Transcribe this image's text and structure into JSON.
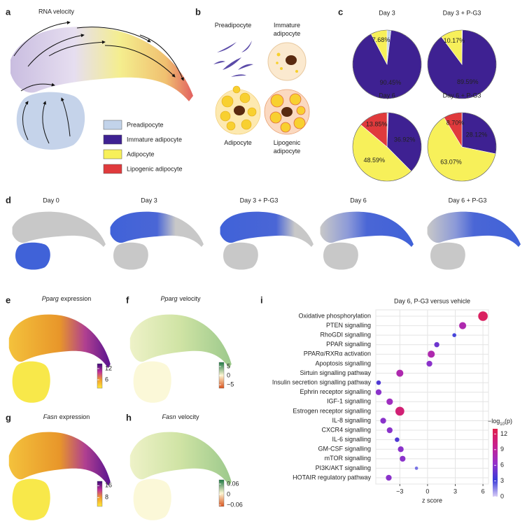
{
  "panel_labels": [
    "a",
    "b",
    "c",
    "d",
    "e",
    "f",
    "g",
    "h",
    "i"
  ],
  "a": {
    "title": "RNA velocity",
    "legend": [
      {
        "name": "Preadipocyte",
        "color": "#c2d3ea"
      },
      {
        "name": "Immature adipocyte",
        "color": "#3e2192"
      },
      {
        "name": "Adipocyte",
        "color": "#f7f05a"
      },
      {
        "name": "Lipogenic adipocyte",
        "color": "#e03a3c"
      }
    ]
  },
  "b": {
    "cells": [
      [
        "Preadipocyte"
      ],
      [
        "Immature",
        "adipocyte"
      ],
      [
        "Adipocyte"
      ],
      [
        "Lipogenic",
        "adipocyte"
      ]
    ]
  },
  "d": {
    "titles": [
      "Day 0",
      "Day 3",
      "Day 3 + P-G3",
      "Day 6",
      "Day 6 + P-G3"
    ]
  },
  "feature_plots": [
    {
      "gene": "Pparg",
      "title": "expression",
      "clim": [
        1.5,
        14.6
      ],
      "ticks": [
        12,
        6
      ],
      "colormap": [
        "#ffe93a",
        "#f3a02a",
        "#c0309a",
        "#3a0a7a"
      ]
    },
    {
      "gene": "Pparg",
      "title": "velocity",
      "clim": [
        -6.9,
        7.3
      ],
      "ticks": [
        5,
        0,
        {
          "value": -5,
          "label": "−5"
        }
      ],
      "colormap": [
        "#d9541e",
        "#fdf6d2",
        "#1f7a45"
      ]
    },
    {
      "gene": "Fasn",
      "title": "expression",
      "clim": [
        2,
        19
      ],
      "ticks": [
        16,
        8
      ],
      "colormap": [
        "#ffe93a",
        "#f3a02a",
        "#c0309a",
        "#3a0a7a"
      ]
    },
    {
      "gene": "Fasn",
      "title": "velocity",
      "clim": [
        -0.068,
        0.084
      ],
      "ticks": [
        0.06,
        0,
        {
          "value": -0.06,
          "label": "−0.06"
        }
      ],
      "colormap": [
        "#d9541e",
        "#fdf6d2",
        "#1f7a45"
      ]
    }
  ],
  "chart_data": [
    {
      "type": "pie",
      "title": "Day 3",
      "values": [
        1.87,
        90.45,
        7.68
      ],
      "colors": [
        "#c2d3ea",
        "#3e2192",
        "#f7f05a"
      ],
      "value_labels": [
        null,
        "90.45%",
        "7.68%"
      ]
    },
    {
      "type": "pie",
      "title": "Day 3 + P-G3",
      "values": [
        0.24,
        89.59,
        10.17
      ],
      "colors": [
        "#c2d3ea",
        "#3e2192",
        "#f7f05a"
      ],
      "value_labels": [
        null,
        "89.59%",
        "10.17%"
      ]
    },
    {
      "type": "pie",
      "title": "Day 6",
      "values": [
        0.64,
        36.92,
        48.59,
        13.85
      ],
      "colors": [
        "#c2d3ea",
        "#3e2192",
        "#f7f05a",
        "#e03a3c"
      ],
      "value_labels": [
        null,
        "36.92%",
        "48.59%",
        "13.85%"
      ]
    },
    {
      "type": "pie",
      "title": "Day 6 + P-G3",
      "values": [
        0.11,
        28.12,
        63.07,
        8.7
      ],
      "colors": [
        "#c2d3ea",
        "#3e2192",
        "#f7f05a",
        "#e03a3c"
      ],
      "value_labels": [
        null,
        "28.12%",
        "63.07%",
        "8.70%"
      ]
    },
    {
      "type": "dot",
      "title": "Day 6, P-G3 versus vehicle",
      "categories": [
        "Oxidative phosphorylation",
        "PTEN signalling",
        "RhoGDI signalling",
        "PPAR signalling",
        "PPARα/RXRα activation",
        "Apoptosis signalling",
        "Sirtuin signalling pathway",
        "Insulin secretion signalling pathway",
        "Ephrin receptor signalling",
        "IGF-1 signalling",
        "Estrogen receptor signalling",
        "IL-8 signalling",
        "CXCR4 signalling",
        "IL-6 signalling",
        "GM-CSF signalling",
        "mTOR signalling",
        "PI3K/AKT signalling",
        "HOTAIR regulatory pathway"
      ],
      "label_colors": [
        "#e02020",
        "#e02020",
        "#e02020",
        "#1e7a1e",
        "#1e7a1e",
        "#222222",
        "#1e7a1e",
        "#1e7a1e",
        "#1e7a1e",
        "#1e7a1e",
        "#1e7a1e",
        "#9a2ad0",
        "#9a2ad0",
        "#9a2ad0",
        "#9a2ad0",
        "#e8901a",
        "#e8901a",
        "#e8901a"
      ],
      "values": [
        6.0,
        3.8,
        2.9,
        1.0,
        0.4,
        0.2,
        -3.0,
        -5.3,
        -5.3,
        -4.1,
        -3.0,
        -4.8,
        -4.1,
        -3.3,
        -2.9,
        -2.7,
        -1.2,
        -4.2
      ],
      "neglog_p": [
        12,
        8,
        3,
        5,
        8,
        6,
        8,
        4,
        6,
        7,
        11,
        6,
        6,
        4,
        6,
        6,
        2,
        6
      ],
      "xlim": [
        -5.6,
        6.6
      ],
      "xticks": [
        {
          "value": -3,
          "label": "−3"
        },
        0,
        3,
        6
      ],
      "xlabel": "z score",
      "grid": true,
      "colorbar": {
        "title": [
          "−log",
          "10",
          "(p)"
        ],
        "lim": [
          0,
          13
        ],
        "ticks": [
          12,
          9,
          6,
          3,
          0
        ],
        "colormap": [
          "#d8ccf6",
          "#3a3ad8",
          "#9830c8",
          "#c8208f",
          "#e0204a"
        ]
      }
    }
  ]
}
